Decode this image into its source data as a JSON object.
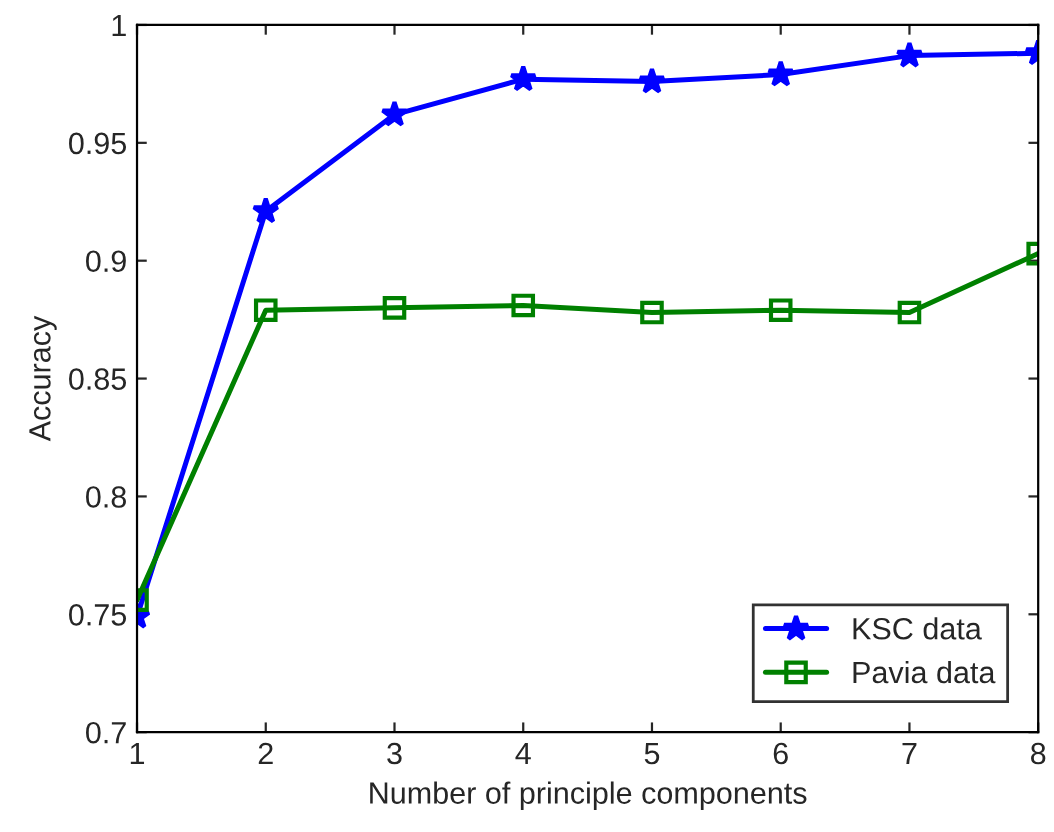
{
  "chart_data": {
    "type": "line",
    "xlabel": "Number of principle components",
    "ylabel": "Accuracy",
    "x": [
      1,
      2,
      3,
      4,
      5,
      6,
      7,
      8
    ],
    "series": [
      {
        "name": "KSC data",
        "color": "#0000ff",
        "marker": "star",
        "values": [
          0.749,
          0.921,
          0.962,
          0.977,
          0.976,
          0.979,
          0.987,
          0.988
        ]
      },
      {
        "name": "Pavia data",
        "color": "#008000",
        "marker": "square",
        "values": [
          0.756,
          0.879,
          0.88,
          0.881,
          0.878,
          0.879,
          0.878,
          0.903
        ]
      }
    ],
    "xlim": [
      1,
      8
    ],
    "xticks": [
      1,
      2,
      3,
      4,
      5,
      6,
      7,
      8
    ],
    "ylim": [
      0.7,
      1
    ],
    "yticks": [
      0.7,
      0.75,
      0.8,
      0.85,
      0.9,
      0.95,
      1
    ],
    "grid": false,
    "legend": "bottom right",
    "line_style": "solid"
  }
}
